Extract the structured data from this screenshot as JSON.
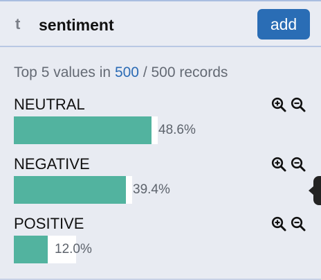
{
  "header": {
    "type_icon": "t",
    "field_name": "sentiment",
    "add_label": "add"
  },
  "summary": {
    "prefix": "Top 5 values in ",
    "count": "500",
    "suffix": " / 500 records"
  },
  "values": [
    {
      "label": "NEUTRAL",
      "percent": "48.6%",
      "fraction": 0.486
    },
    {
      "label": "NEGATIVE",
      "percent": "39.4%",
      "fraction": 0.394
    },
    {
      "label": "POSITIVE",
      "percent": "12.0%",
      "fraction": 0.12
    }
  ],
  "colors": {
    "accent": "#2a6db5",
    "bar": "#52b39f"
  },
  "icons": {
    "zoom_in": "zoom-in-icon",
    "zoom_out": "zoom-out-icon"
  }
}
